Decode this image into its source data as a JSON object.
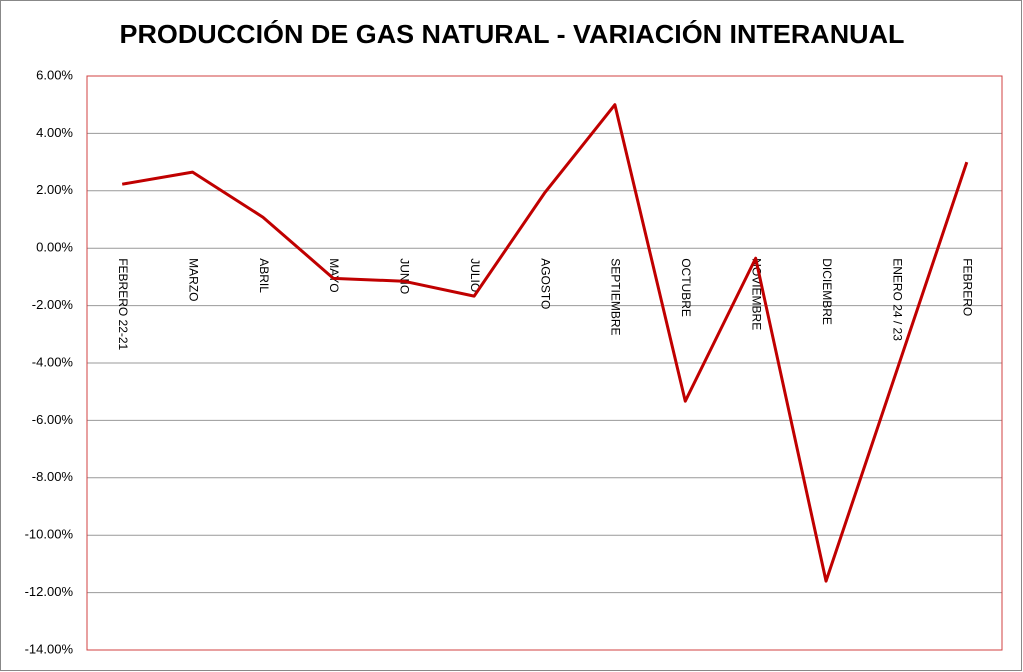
{
  "chart_data": {
    "type": "line",
    "title": "PRODUCCIÓN DE GAS NATURAL - VARIACIÓN INTERANUAL",
    "categories": [
      "FEBRERO 22-21",
      "MARZO",
      "ABRIL",
      "MAYO",
      "JUNIO",
      "JULIO",
      "AGOSTO",
      "SEPTIEMBRE",
      "OCTUBRE",
      "NOVIEMBRE",
      "DICIEMBRE",
      "ENERO 24 / 23",
      "FEBRERO"
    ],
    "series": [
      {
        "color": "#c00000",
        "values": [
          2.23,
          2.65,
          1.08,
          -1.05,
          -1.15,
          -1.67,
          1.92,
          5.0,
          -5.33,
          -0.35,
          -11.6,
          -4.3,
          3.0
        ]
      }
    ],
    "ylim": [
      -14,
      6
    ],
    "yticks": [
      {
        "value": -14,
        "label": "-14.00%"
      },
      {
        "value": -12,
        "label": "-12.00%"
      },
      {
        "value": -10,
        "label": "-10.00%"
      },
      {
        "value": -8,
        "label": "-8.00%"
      },
      {
        "value": -6,
        "label": "-6.00%"
      },
      {
        "value": -4,
        "label": "-4.00%"
      },
      {
        "value": -2,
        "label": "-2.00%"
      },
      {
        "value": 0,
        "label": "0.00%"
      },
      {
        "value": 2,
        "label": "2.00%"
      },
      {
        "value": 4,
        "label": "4.00%"
      },
      {
        "value": 6,
        "label": "6.00%"
      }
    ],
    "grid": true
  }
}
